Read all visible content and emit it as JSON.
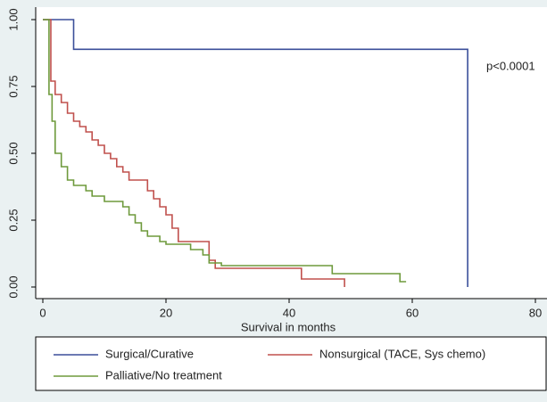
{
  "chart_data": {
    "type": "step",
    "xlabel": "Survival in months",
    "annotation": "p<0.0001",
    "xlim": [
      -1,
      80
    ],
    "xticks": [
      0,
      20,
      40,
      60,
      80
    ],
    "ylim": [
      -0.03,
      1.03
    ],
    "yticks": [
      {
        "value": 0,
        "label": "0.00"
      },
      {
        "value": 0.25,
        "label": "0.25"
      },
      {
        "value": 0.5,
        "label": "0.50"
      },
      {
        "value": 0.75,
        "label": "0.75"
      },
      {
        "value": 1,
        "label": "1.00"
      }
    ],
    "series": [
      {
        "name": "Surgical/Curative",
        "color": "#3b4f9a",
        "x": [
          0,
          5,
          69
        ],
        "values": [
          1,
          0.889,
          0
        ]
      },
      {
        "name": "Nonsurgical (TACE, Sys chemo)",
        "color": "#c0504d",
        "x": [
          0,
          1.3,
          2,
          3,
          4,
          5,
          6,
          7,
          8,
          9,
          10,
          11,
          12,
          13,
          14,
          17,
          18,
          19,
          20,
          21,
          22,
          27,
          28,
          42,
          49
        ],
        "values": [
          1,
          0.77,
          0.72,
          0.69,
          0.65,
          0.62,
          0.6,
          0.58,
          0.55,
          0.53,
          0.5,
          0.48,
          0.45,
          0.43,
          0.4,
          0.36,
          0.33,
          0.3,
          0.27,
          0.22,
          0.17,
          0.1,
          0.07,
          0.03,
          0
        ]
      },
      {
        "name": "Palliative/No treatment",
        "color": "#6e9a3c",
        "x": [
          0,
          1,
          1.5,
          2,
          3,
          4,
          5,
          7,
          8,
          10,
          13,
          14,
          15,
          16,
          17,
          19,
          20,
          24,
          26,
          27,
          29,
          47,
          58,
          59
        ],
        "values": [
          1,
          0.72,
          0.62,
          0.5,
          0.45,
          0.4,
          0.38,
          0.36,
          0.34,
          0.32,
          0.3,
          0.27,
          0.24,
          0.21,
          0.19,
          0.17,
          0.16,
          0.14,
          0.12,
          0.09,
          0.08,
          0.05,
          0.02,
          0.02
        ]
      }
    ]
  }
}
